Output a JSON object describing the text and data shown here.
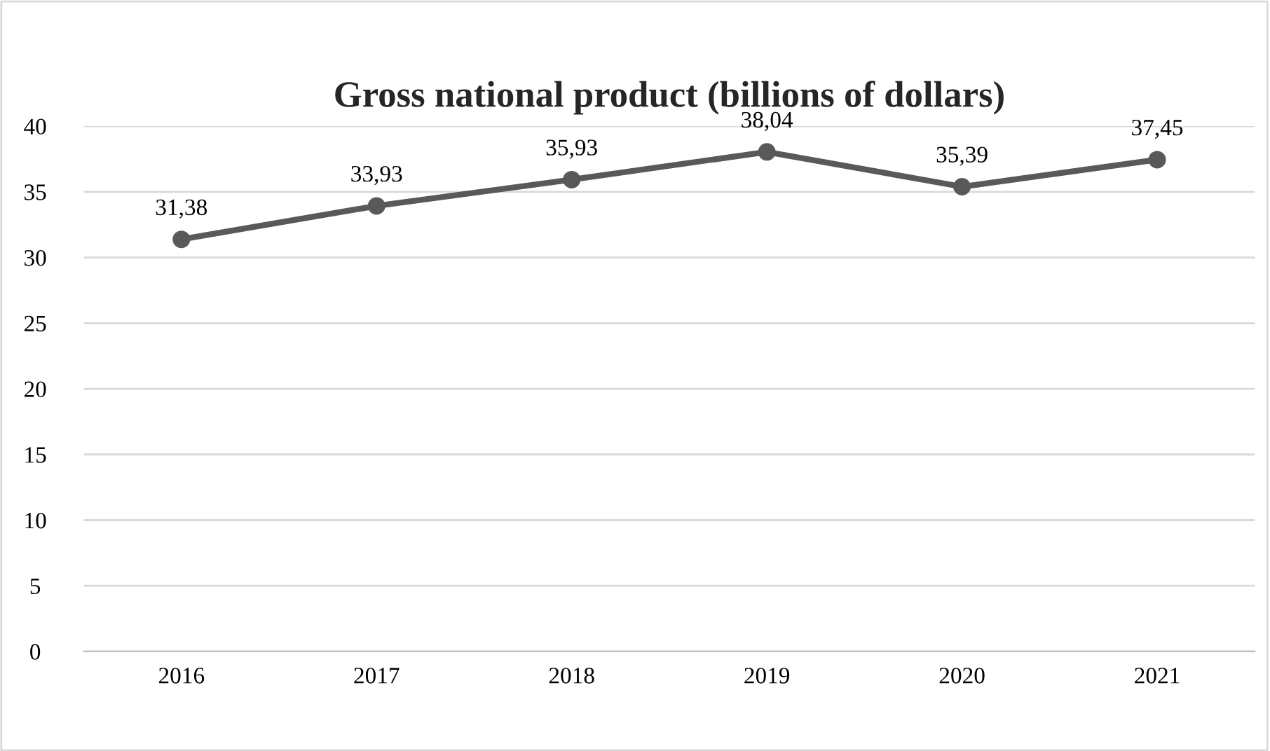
{
  "chart_data": {
    "type": "line",
    "title": "Gross national product (billions of dollars)",
    "categories": [
      "2016",
      "2017",
      "2018",
      "2019",
      "2020",
      "2021"
    ],
    "series": [
      {
        "color": "#595959",
        "values": [
          31.38,
          33.93,
          35.93,
          38.04,
          35.39,
          37.45
        ],
        "value_labels": [
          "31,38",
          "33,93",
          "35,93",
          "38,04",
          "35,39",
          "37,45"
        ]
      }
    ],
    "ylim": [
      0,
      40
    ],
    "yticks": [
      0,
      5,
      10,
      15,
      20,
      25,
      30,
      35,
      40
    ],
    "grid": "y",
    "marker": "circle",
    "line_style": "solid",
    "legend": false
  }
}
